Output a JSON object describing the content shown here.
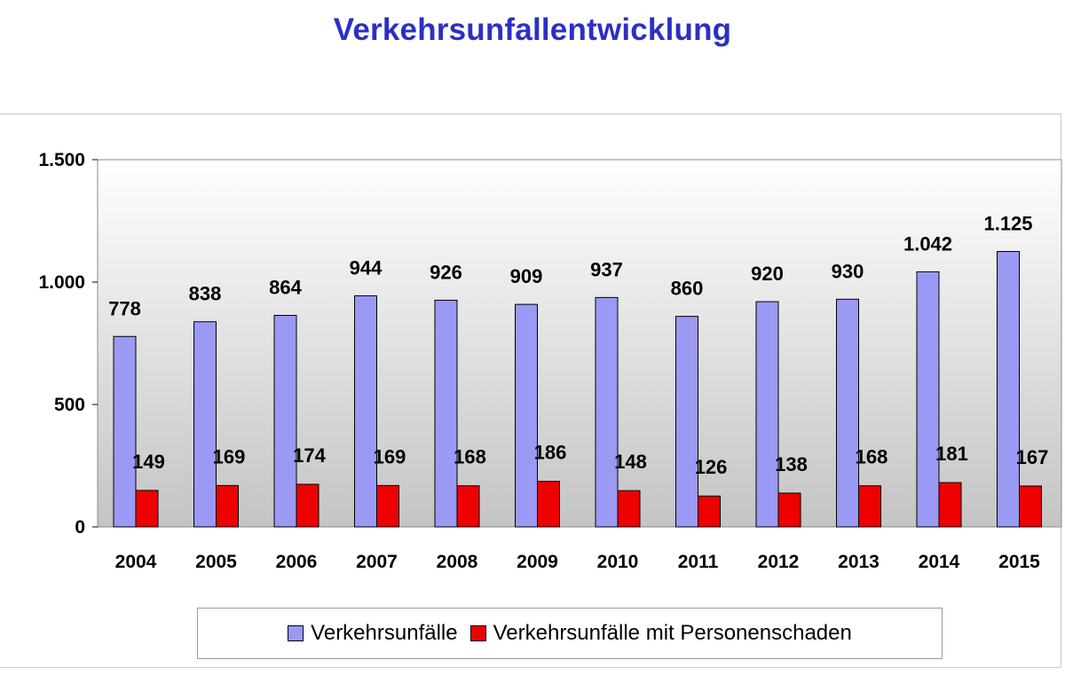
{
  "title": "Verkehrsunfallentwicklung",
  "chart_data": {
    "type": "bar",
    "title": "Verkehrsunfallentwicklung",
    "xlabel": "",
    "ylabel": "",
    "categories": [
      "2004",
      "2005",
      "2006",
      "2007",
      "2008",
      "2009",
      "2010",
      "2011",
      "2012",
      "2013",
      "2014",
      "2015"
    ],
    "series": [
      {
        "name": "Verkehrsunfälle",
        "values": [
          778,
          838,
          864,
          944,
          926,
          909,
          937,
          860,
          920,
          930,
          1042,
          1125
        ],
        "labels": [
          "778",
          "838",
          "864",
          "944",
          "926",
          "909",
          "937",
          "860",
          "920",
          "930",
          "1.042",
          "1.125"
        ],
        "color": "#9a9af5"
      },
      {
        "name": "Verkehrsunfälle mit Personenschaden",
        "values": [
          149,
          169,
          174,
          169,
          168,
          186,
          148,
          126,
          138,
          168,
          181,
          167
        ],
        "labels": [
          "149",
          "169",
          "174",
          "169",
          "168",
          "186",
          "148",
          "126",
          "138",
          "168",
          "181",
          "167"
        ],
        "color": "#ee0000"
      }
    ],
    "ylim": [
      0,
      1500
    ],
    "yticks": [
      0,
      500,
      1000,
      1500
    ],
    "ytick_labels": [
      "0",
      "500",
      "1.000",
      "1.500"
    ],
    "grid": false,
    "legend": "bottom"
  }
}
